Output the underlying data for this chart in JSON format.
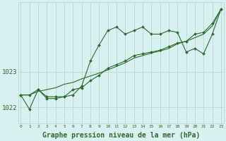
{
  "hours": [
    0,
    1,
    2,
    3,
    4,
    5,
    6,
    7,
    8,
    9,
    10,
    11,
    12,
    13,
    14,
    15,
    16,
    17,
    18,
    19,
    20,
    21,
    22,
    23
  ],
  "line1": [
    1022.35,
    1021.95,
    1022.5,
    1022.25,
    1022.25,
    1022.3,
    1022.35,
    1022.6,
    1023.3,
    1023.75,
    1024.15,
    1024.25,
    1024.05,
    1024.15,
    1024.25,
    1024.05,
    1024.05,
    1024.15,
    1024.1,
    1023.55,
    1023.65,
    1023.5,
    1024.05,
    1024.75
  ],
  "line2": [
    1022.35,
    1022.35,
    1022.5,
    1022.3,
    1022.3,
    1022.3,
    1022.5,
    1022.55,
    1022.75,
    1022.9,
    1023.1,
    1023.2,
    1023.3,
    1023.45,
    1023.5,
    1023.55,
    1023.6,
    1023.7,
    1023.8,
    1023.85,
    1024.05,
    1024.1,
    1024.35,
    1024.75
  ],
  "line3": [
    1022.35,
    1022.35,
    1022.45,
    1022.5,
    1022.55,
    1022.65,
    1022.7,
    1022.8,
    1022.88,
    1022.96,
    1023.05,
    1023.15,
    1023.25,
    1023.38,
    1023.45,
    1023.52,
    1023.58,
    1023.65,
    1023.78,
    1023.85,
    1023.95,
    1024.05,
    1024.28,
    1024.75
  ],
  "ylim": [
    1021.55,
    1024.95
  ],
  "yticks": [
    1022.0,
    1023.0
  ],
  "line_color": "#2d6a2d",
  "bg_color": "#d8f0f0",
  "grid_color": "#b0d4d4",
  "title": "Graphe pression niveau de la mer (hPa)",
  "marker": "D",
  "markersize": 2.0,
  "linewidth": 0.8
}
